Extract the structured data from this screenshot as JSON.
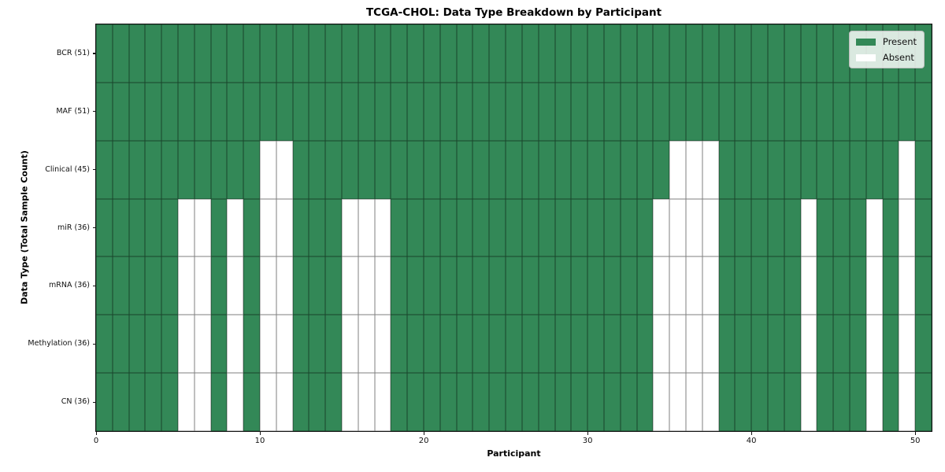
{
  "colors": {
    "present": "#338857",
    "absent": "#ffffff",
    "cell_edge": "rgba(0,0,0,0.5)",
    "axis": "#141414"
  },
  "legend": {
    "items": [
      {
        "label": "Present",
        "color": "#338857"
      },
      {
        "label": "Absent",
        "color": "#ffffff"
      }
    ]
  },
  "chart_data": {
    "type": "heatmap",
    "title": "TCGA-CHOL: Data Type Breakdown by Participant",
    "xlabel": "Participant",
    "ylabel": "Data Type (Total Sample Count)",
    "n_participants": 51,
    "x_ticks": [
      0,
      10,
      20,
      30,
      40,
      50
    ],
    "x_range": [
      0,
      51
    ],
    "grid": "cell-borders",
    "legend_position": "upper right",
    "cell_values": "1 = Present (green), 0 = Absent (white)",
    "rows": [
      {
        "name": "BCR",
        "label": "BCR (51)",
        "total": 51,
        "absent_participants": []
      },
      {
        "name": "MAF",
        "label": "MAF (51)",
        "total": 51,
        "absent_participants": []
      },
      {
        "name": "Clinical",
        "label": "Clinical (45)",
        "total": 45,
        "absent_participants": [
          10,
          11,
          35,
          36,
          37,
          49
        ]
      },
      {
        "name": "miR",
        "label": "miR (36)",
        "total": 36,
        "absent_participants": [
          5,
          6,
          8,
          10,
          11,
          15,
          16,
          17,
          34,
          35,
          36,
          37,
          43,
          47,
          49
        ]
      },
      {
        "name": "mRNA",
        "label": "mRNA (36)",
        "total": 36,
        "absent_participants": [
          5,
          6,
          8,
          10,
          11,
          15,
          16,
          17,
          34,
          35,
          36,
          37,
          43,
          47,
          49
        ]
      },
      {
        "name": "Methylation",
        "label": "Methylation (36)",
        "total": 36,
        "absent_participants": [
          5,
          6,
          8,
          10,
          11,
          15,
          16,
          17,
          34,
          35,
          36,
          37,
          43,
          47,
          49
        ]
      },
      {
        "name": "CN",
        "label": "CN (36)",
        "total": 36,
        "absent_participants": [
          5,
          6,
          8,
          10,
          11,
          15,
          16,
          17,
          34,
          35,
          36,
          37,
          43,
          47,
          49
        ]
      }
    ]
  }
}
